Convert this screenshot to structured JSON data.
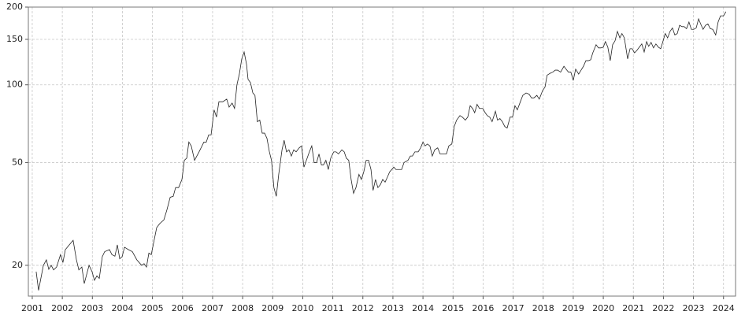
{
  "chart_data": {
    "type": "line",
    "log_scale": true,
    "grid": true,
    "color": "#222222",
    "xlim": [
      2000.87,
      2024.4
    ],
    "ylim": [
      15.2,
      200
    ],
    "xticks": [
      2001,
      2002,
      2003,
      2004,
      2005,
      2006,
      2007,
      2008,
      2009,
      2010,
      2011,
      2012,
      2013,
      2014,
      2015,
      2016,
      2017,
      2018,
      2019,
      2020,
      2021,
      2022,
      2023,
      2024
    ],
    "yticks": [
      20,
      50,
      100,
      150,
      200
    ],
    "x": [
      2001.13,
      2001.21,
      2001.37,
      2001.47,
      2001.55,
      2001.63,
      2001.71,
      2001.81,
      2001.94,
      2002.02,
      2002.1,
      2002.23,
      2002.36,
      2002.47,
      2002.55,
      2002.65,
      2002.73,
      2002.89,
      2002.99,
      2003.07,
      2003.15,
      2003.23,
      2003.33,
      2003.41,
      2003.57,
      2003.65,
      2003.75,
      2003.83,
      2003.91,
      2003.99,
      2004.07,
      2004.2,
      2004.33,
      2004.48,
      2004.64,
      2004.72,
      2004.8,
      2004.88,
      2004.96,
      2005.03,
      2005.14,
      2005.24,
      2005.38,
      2005.48,
      2005.59,
      2005.69,
      2005.77,
      2005.87,
      2005.98,
      2006.06,
      2006.14,
      2006.21,
      2006.29,
      2006.4,
      2006.55,
      2006.71,
      2006.79,
      2006.87,
      2006.95,
      2007.05,
      2007.13,
      2007.21,
      2007.34,
      2007.47,
      2007.55,
      2007.65,
      2007.73,
      2007.81,
      2007.89,
      2007.97,
      2008.05,
      2008.13,
      2008.18,
      2008.26,
      2008.34,
      2008.41,
      2008.49,
      2008.57,
      2008.65,
      2008.73,
      2008.81,
      2008.89,
      2008.96,
      2009.04,
      2009.12,
      2009.2,
      2009.31,
      2009.38,
      2009.46,
      2009.54,
      2009.62,
      2009.7,
      2009.78,
      2009.88,
      2009.96,
      2010.04,
      2010.12,
      2010.22,
      2010.3,
      2010.38,
      2010.46,
      2010.54,
      2010.62,
      2010.69,
      2010.77,
      2010.85,
      2010.93,
      2011.03,
      2011.11,
      2011.19,
      2011.3,
      2011.38,
      2011.45,
      2011.53,
      2011.61,
      2011.69,
      2011.77,
      2011.87,
      2011.95,
      2012.03,
      2012.11,
      2012.19,
      2012.27,
      2012.34,
      2012.42,
      2012.5,
      2012.58,
      2012.66,
      2012.74,
      2012.82,
      2012.89,
      2013.03,
      2013.1,
      2013.29,
      2013.37,
      2013.5,
      2013.58,
      2013.65,
      2013.73,
      2013.84,
      2013.92,
      2014.0,
      2014.07,
      2014.15,
      2014.23,
      2014.31,
      2014.39,
      2014.49,
      2014.57,
      2014.68,
      2014.78,
      2014.86,
      2014.96,
      2015.04,
      2015.12,
      2015.23,
      2015.31,
      2015.41,
      2015.49,
      2015.57,
      2015.65,
      2015.72,
      2015.8,
      2015.88,
      2015.99,
      2016.07,
      2016.14,
      2016.22,
      2016.3,
      2016.41,
      2016.48,
      2016.56,
      2016.64,
      2016.72,
      2016.8,
      2016.9,
      2016.98,
      2017.06,
      2017.14,
      2017.24,
      2017.32,
      2017.43,
      2017.53,
      2017.61,
      2017.69,
      2017.79,
      2017.87,
      2017.98,
      2018.06,
      2018.13,
      2018.24,
      2018.32,
      2018.4,
      2018.48,
      2018.58,
      2018.69,
      2018.76,
      2018.84,
      2018.92,
      2019.0,
      2019.08,
      2019.18,
      2019.26,
      2019.34,
      2019.42,
      2019.5,
      2019.58,
      2019.65,
      2019.76,
      2019.84,
      2019.92,
      2020.0,
      2020.07,
      2020.15,
      2020.23,
      2020.31,
      2020.39,
      2020.47,
      2020.55,
      2020.62,
      2020.7,
      2020.81,
      2020.89,
      2020.96,
      2021.04,
      2021.12,
      2021.2,
      2021.28,
      2021.36,
      2021.44,
      2021.51,
      2021.59,
      2021.67,
      2021.75,
      2021.83,
      2021.91,
      2021.99,
      2022.06,
      2022.14,
      2022.22,
      2022.3,
      2022.38,
      2022.46,
      2022.54,
      2022.62,
      2022.69,
      2022.77,
      2022.85,
      2022.93,
      2023.01,
      2023.09,
      2023.17,
      2023.24,
      2023.32,
      2023.4,
      2023.48,
      2023.56,
      2023.64,
      2023.74,
      2023.82,
      2023.9,
      2024.0,
      2024.08
    ],
    "values": [
      18.9,
      16,
      20,
      21,
      19.3,
      20,
      19.2,
      19.7,
      22,
      20.5,
      23,
      24,
      25,
      21,
      19.2,
      19.7,
      17,
      20,
      18.9,
      17.5,
      18.2,
      17.8,
      21.6,
      22.6,
      23,
      22,
      21.7,
      24,
      21.2,
      21.6,
      23.5,
      23,
      22.6,
      21,
      20,
      20.3,
      19.7,
      22.3,
      22,
      24.2,
      28,
      29,
      30,
      32.8,
      36.7,
      37,
      40,
      40,
      43,
      51,
      52,
      60,
      58,
      51,
      55,
      60,
      60,
      64,
      64,
      80,
      75,
      86,
      86,
      88,
      82,
      85,
      81,
      100,
      110,
      126,
      134,
      120,
      105,
      102,
      93,
      91,
      72,
      73,
      65,
      65,
      62,
      55,
      51,
      40,
      37,
      45,
      56,
      61,
      55,
      56,
      53,
      56,
      55,
      57,
      58,
      48,
      51,
      55,
      58,
      50,
      50,
      54,
      49,
      49,
      51,
      47,
      52,
      55,
      55,
      54,
      56,
      55,
      52,
      51,
      43,
      38,
      40,
      45,
      43,
      46,
      51,
      51,
      47,
      39,
      43,
      40,
      41,
      43,
      42,
      44,
      46,
      48,
      47,
      47,
      50,
      51,
      53,
      53,
      55,
      55,
      57,
      60,
      58,
      59,
      58,
      53,
      56,
      57,
      54,
      54,
      54,
      58,
      59,
      69,
      73,
      76,
      75,
      73,
      75,
      83,
      81,
      78,
      84,
      81,
      81,
      78,
      76,
      75,
      72,
      79,
      73,
      74,
      72,
      69,
      68,
      75,
      75,
      83,
      80,
      86,
      91,
      93,
      92,
      89,
      89,
      91,
      88,
      95,
      98,
      109,
      111,
      112,
      114,
      114,
      112,
      118,
      115,
      112,
      112,
      104,
      115,
      110,
      114,
      118,
      124,
      124,
      125,
      133,
      143,
      139,
      139,
      140,
      147,
      140,
      124,
      143,
      148,
      161,
      152,
      158,
      152,
      126,
      138,
      138,
      133,
      136,
      140,
      144,
      134,
      147,
      141,
      146,
      139,
      144,
      140,
      138,
      148,
      158,
      152,
      161,
      166,
      156,
      158,
      170,
      168,
      168,
      165,
      175,
      164,
      164,
      166,
      180,
      172,
      164,
      170,
      172,
      165,
      164,
      156,
      175,
      185,
      185,
      192
    ]
  }
}
